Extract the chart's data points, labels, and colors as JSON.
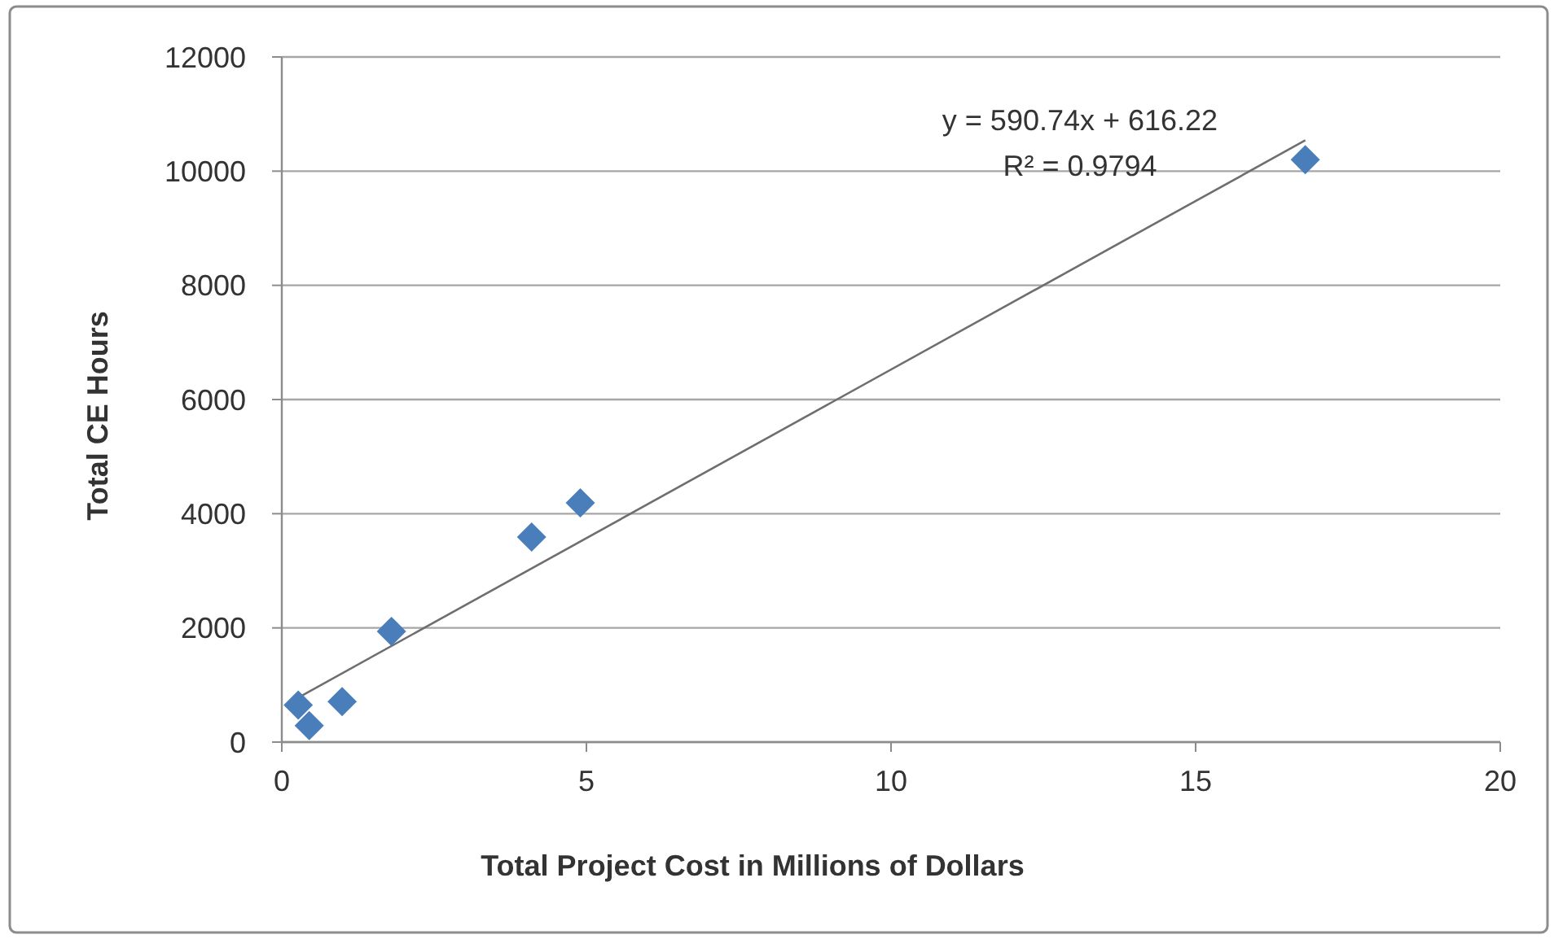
{
  "chart_data": {
    "type": "scatter",
    "xlabel": "Total Project Cost in Millions of Dollars",
    "ylabel": "Total CE Hours",
    "xlim": [
      0,
      20
    ],
    "xticks": [
      0,
      5,
      10,
      15,
      20
    ],
    "ylim": [
      0,
      12000
    ],
    "yticks": [
      0,
      2000,
      4000,
      6000,
      8000,
      10000,
      12000
    ],
    "grid": "y",
    "series": [
      {
        "color": "#4a7ebb",
        "marker": "diamond",
        "x": [
          0.27,
          0.45,
          0.99,
          1.8,
          4.1,
          4.9,
          16.8
        ],
        "values": [
          650,
          290,
          710,
          1940,
          3590,
          4190,
          10200
        ]
      },
      {
        "type": "line",
        "color": "#6e6e6e",
        "x": [
          0.27,
          16.8
        ],
        "values": [
          780,
          10540
        ]
      }
    ],
    "annotations": [
      "y = 590.74x + 616.22",
      "R² = 0.9794"
    ]
  }
}
